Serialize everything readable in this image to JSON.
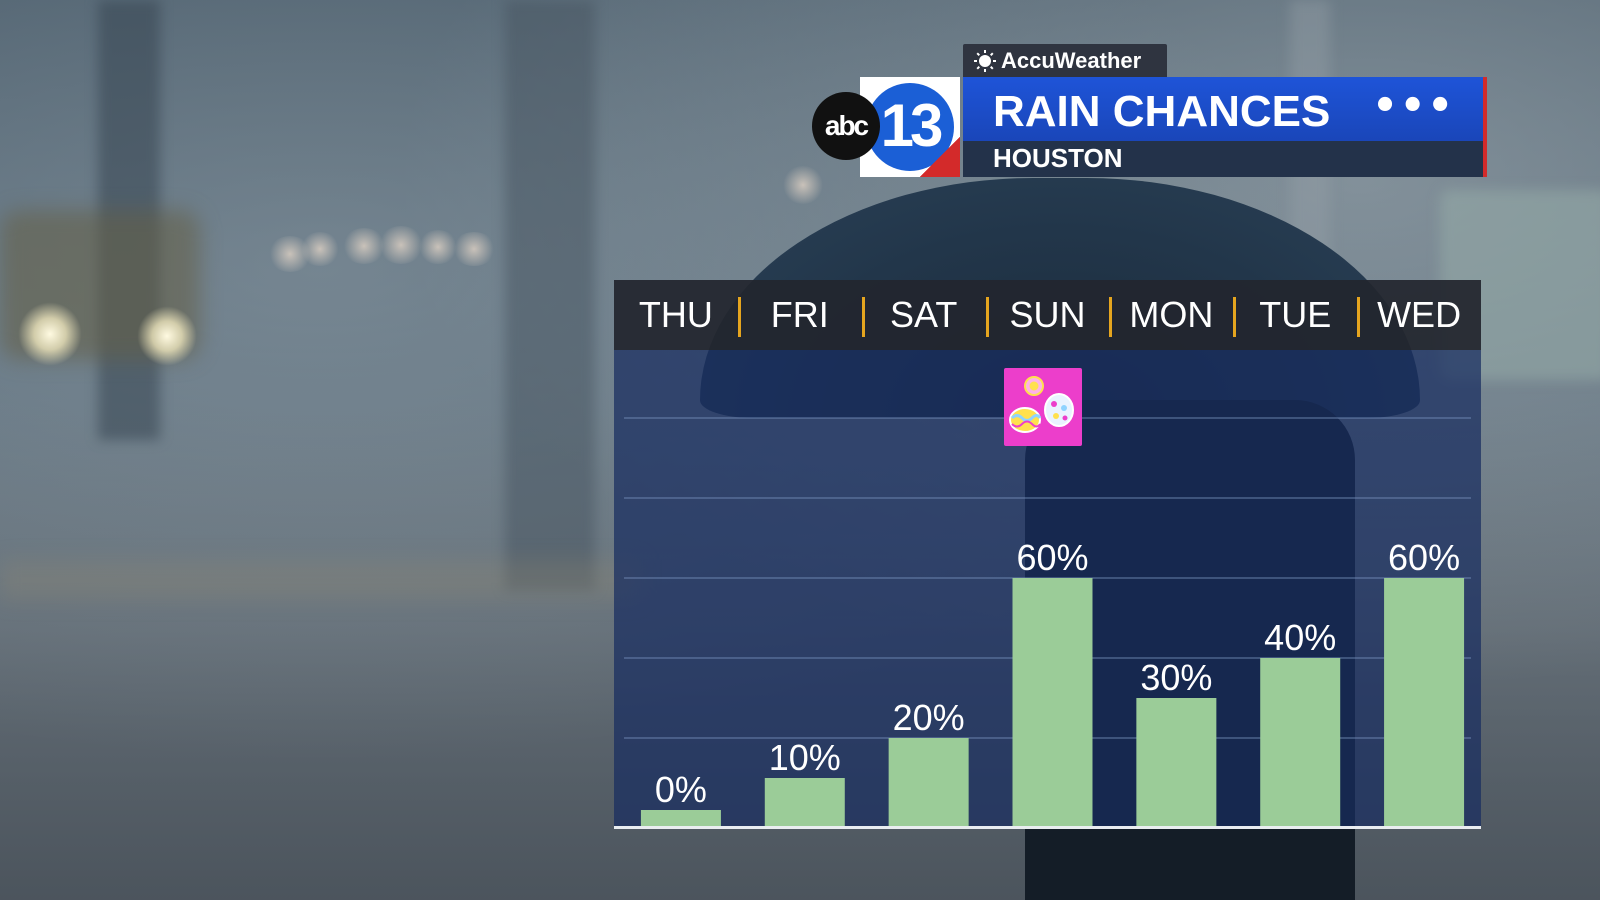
{
  "brand": {
    "accuweather_label": "AccuWeather",
    "abc_label": "abc",
    "channel_number": "13"
  },
  "header": {
    "title": "RAIN CHANCES",
    "location": "HOUSTON",
    "dots": "•••"
  },
  "colors": {
    "bar": "#9bcc98",
    "plot_bg": "#1c2f63",
    "title_bar": "#1e54d8",
    "divider": "#e5a51f",
    "easter_badge": "#ec3ecb"
  },
  "icons": {
    "easter_badge": "easter-eggs-icon",
    "accuweather": "sun-icon"
  },
  "chart_data": {
    "type": "bar",
    "title": "RAIN CHANCES",
    "subtitle": "HOUSTON",
    "categories": [
      "THU",
      "FRI",
      "SAT",
      "SUN",
      "MON",
      "TUE",
      "WED"
    ],
    "values": [
      0,
      10,
      20,
      60,
      30,
      40,
      60
    ],
    "value_labels": [
      "0%",
      "10%",
      "20%",
      "60%",
      "30%",
      "40%",
      "60%"
    ],
    "ylim": [
      0,
      100
    ],
    "unit": "%",
    "grid": true,
    "annotation": {
      "category": "SUN",
      "icon": "easter-eggs-icon"
    }
  }
}
